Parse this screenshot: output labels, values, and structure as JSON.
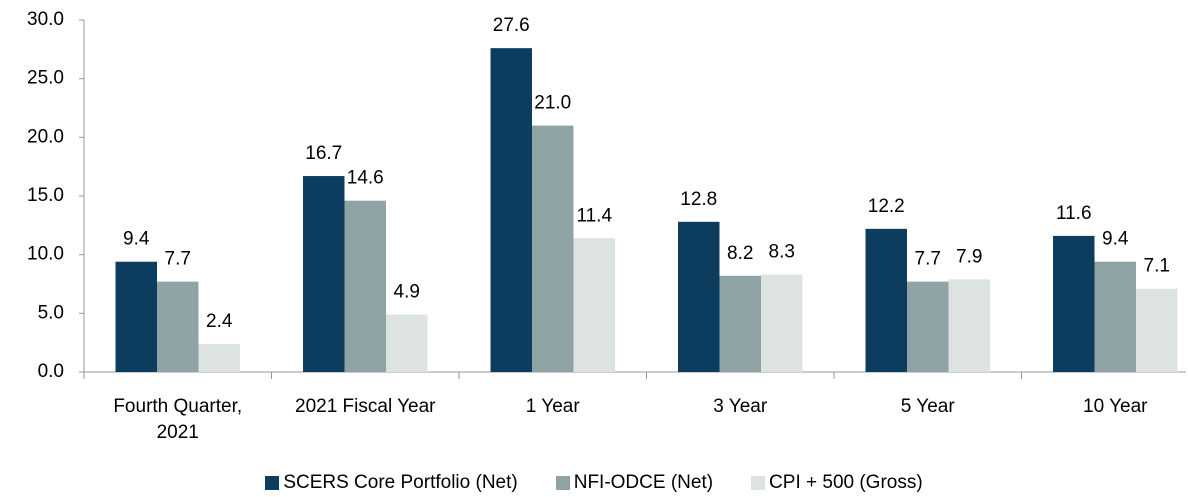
{
  "chart_data": {
    "type": "bar",
    "categories": [
      "Fourth Quarter,\n2021",
      "2021 Fiscal Year",
      "1 Year",
      "3 Year",
      "5 Year",
      "10 Year"
    ],
    "series": [
      {
        "name": "SCERS Core Portfolio (Net)",
        "color": "#0c3c5e",
        "values": [
          9.4,
          16.7,
          27.6,
          12.8,
          12.2,
          11.6
        ],
        "value_labels": [
          "9.4",
          "16.7",
          "27.6",
          "12.8",
          "12.2",
          "11.6"
        ]
      },
      {
        "name": "NFI-ODCE (Net)",
        "color": "#8fa3a4",
        "values": [
          7.7,
          14.6,
          21.0,
          8.2,
          7.7,
          9.4
        ],
        "value_labels": [
          "7.7",
          "14.6",
          "21.0",
          "8.2",
          "7.7",
          "9.4"
        ]
      },
      {
        "name": "CPI + 500 (Gross)",
        "color": "#dde3e0",
        "values": [
          2.4,
          4.9,
          11.4,
          8.3,
          7.9,
          7.1
        ],
        "value_labels": [
          "2.4",
          "4.9",
          "11.4",
          "8.3",
          "7.9",
          "7.1"
        ]
      }
    ],
    "ylim": [
      0,
      30
    ],
    "yticks": [
      {
        "value": 0,
        "label": "0.0"
      },
      {
        "value": 5,
        "label": "5.0"
      },
      {
        "value": 10,
        "label": "10.0"
      },
      {
        "value": 15,
        "label": "15.0"
      },
      {
        "value": 20,
        "label": "20.0"
      },
      {
        "value": 25,
        "label": "25.0"
      },
      {
        "value": 30,
        "label": "30.0"
      }
    ],
    "grid": false,
    "legend": "bottom"
  }
}
